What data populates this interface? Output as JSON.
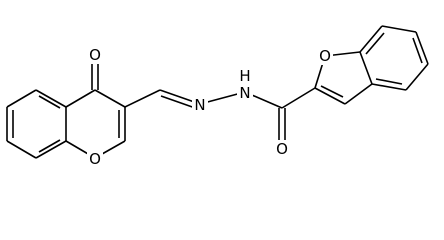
{
  "atoms": [
    "O",
    "O",
    "N",
    "N",
    "H",
    "O",
    "O"
  ]
}
